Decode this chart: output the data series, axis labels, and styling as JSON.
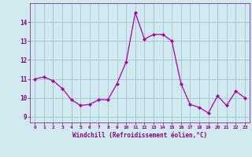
{
  "x": [
    0,
    1,
    2,
    3,
    4,
    5,
    6,
    7,
    8,
    9,
    10,
    11,
    12,
    13,
    14,
    15,
    16,
    17,
    18,
    19,
    20,
    21,
    22,
    23
  ],
  "y": [
    11.0,
    11.1,
    10.9,
    10.5,
    9.9,
    9.6,
    9.65,
    9.9,
    9.9,
    10.75,
    11.9,
    14.5,
    13.1,
    13.35,
    13.35,
    13.0,
    10.75,
    9.65,
    9.5,
    9.2,
    10.1,
    9.6,
    10.35,
    10.0
  ],
  "line_color": "#aa00aa",
  "marker": "D",
  "marker_size": 2,
  "bg_color": "#d0eaf0",
  "grid_color": "#99bbcc",
  "xlabel": "Windchill (Refroidissement éolien,°C)",
  "xlabel_color": "#880088",
  "tick_color": "#880088",
  "ylim": [
    8.7,
    15.0
  ],
  "yticks": [
    9,
    10,
    11,
    12,
    13,
    14
  ],
  "xlim": [
    -0.5,
    23.5
  ],
  "xticks": [
    0,
    1,
    2,
    3,
    4,
    5,
    6,
    7,
    8,
    9,
    10,
    11,
    12,
    13,
    14,
    15,
    16,
    17,
    18,
    19,
    20,
    21,
    22,
    23
  ]
}
